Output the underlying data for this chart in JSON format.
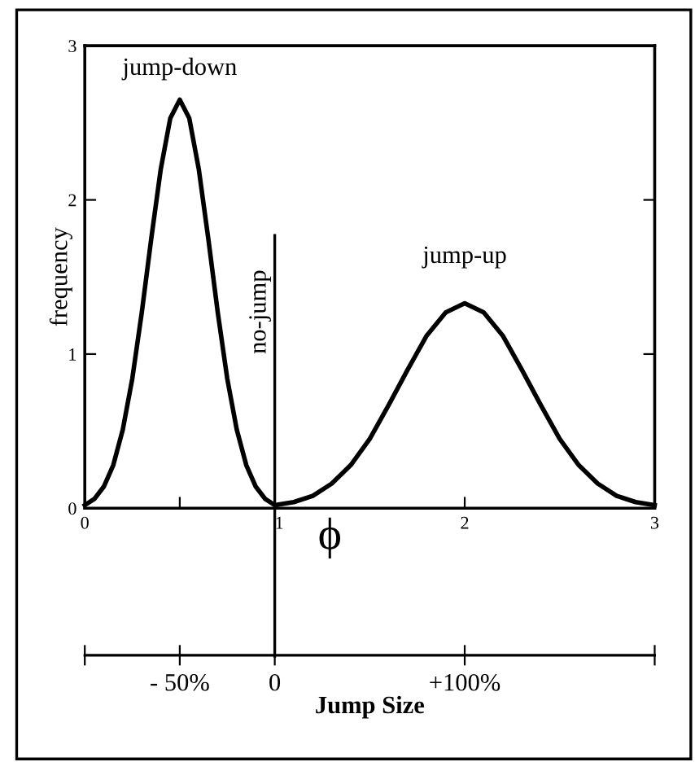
{
  "chart_data": {
    "type": "line",
    "xlabel": "ϕ",
    "ylabel": "frequency",
    "x2label": "Jump Size",
    "x": [
      0,
      0.05,
      0.1,
      0.15,
      0.2,
      0.25,
      0.3,
      0.35,
      0.4,
      0.45,
      0.5,
      0.55,
      0.6,
      0.65,
      0.7,
      0.75,
      0.8,
      0.85,
      0.9,
      0.95,
      1.0,
      1.1,
      1.2,
      1.3,
      1.4,
      1.5,
      1.6,
      1.7,
      1.8,
      1.9,
      2.0,
      2.1,
      2.2,
      2.3,
      2.4,
      2.5,
      2.6,
      2.7,
      2.8,
      2.9,
      3.0
    ],
    "series": [
      {
        "color": "#000000",
        "values": [
          0.02,
          0.06,
          0.14,
          0.28,
          0.51,
          0.84,
          1.27,
          1.75,
          2.2,
          2.53,
          2.65,
          2.53,
          2.2,
          1.75,
          1.27,
          0.84,
          0.51,
          0.28,
          0.14,
          0.06,
          0.02,
          0.04,
          0.08,
          0.16,
          0.28,
          0.45,
          0.67,
          0.9,
          1.12,
          1.27,
          1.33,
          1.27,
          1.12,
          0.9,
          0.67,
          0.45,
          0.28,
          0.16,
          0.08,
          0.04,
          0.02
        ]
      }
    ],
    "xlim": [
      0,
      3
    ],
    "ylim": [
      0,
      3
    ],
    "xticks": [
      0,
      {
        "value": 0.5,
        "label": null
      },
      1,
      2,
      3
    ],
    "yticks": [
      0,
      1,
      2,
      3
    ],
    "x2lim": [
      -100,
      200
    ],
    "x2ticks": [
      {
        "value": -100,
        "label": null
      },
      {
        "value": -50,
        "label": "- 50%"
      },
      0,
      {
        "value": 100,
        "label": "+100%"
      },
      {
        "value": 200,
        "label": null
      }
    ],
    "ref_lines": [
      {
        "axis": "x",
        "value": 1,
        "label": "no-jump",
        "color": "#000000"
      }
    ],
    "annotations": [
      {
        "text": "jump-down",
        "x": 0.5,
        "y": 2.65
      },
      {
        "text": "jump-up",
        "x": 2,
        "y": 1.33
      }
    ],
    "grid": false,
    "legend": false,
    "marker": "none",
    "line_style": "solid"
  }
}
